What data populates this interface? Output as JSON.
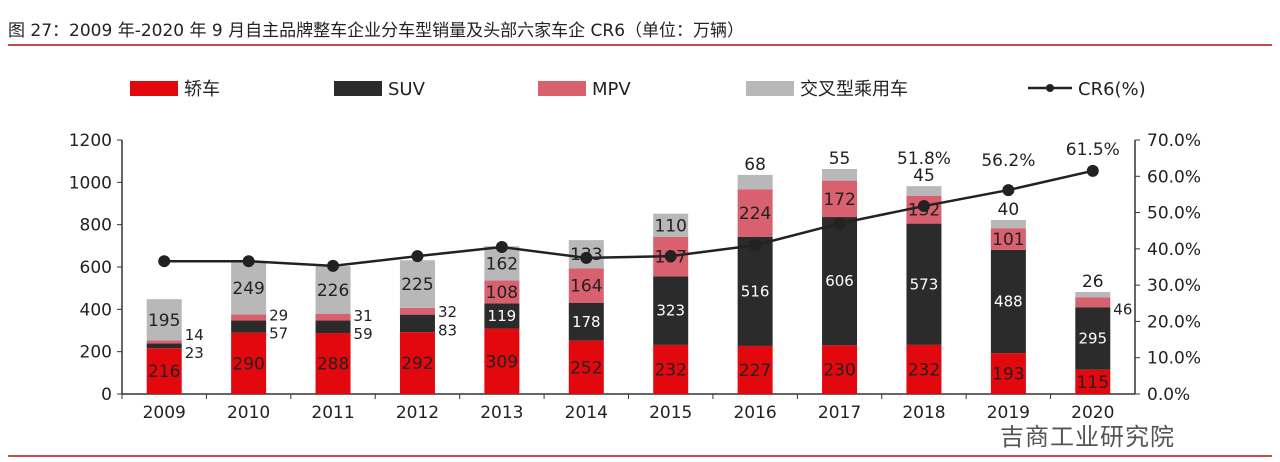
{
  "title": "图 27：2009 年-2020 年 9 月自主品牌整车企业分车型销量及头部六家车企 CR6（单位：万辆）",
  "watermark": "吉商工业研究院",
  "chart_data": {
    "type": "bar",
    "stacked": true,
    "categories": [
      "2009",
      "2010",
      "2011",
      "2012",
      "2013",
      "2014",
      "2015",
      "2016",
      "2017",
      "2018",
      "2019",
      "2020"
    ],
    "series": [
      {
        "name": "轿车",
        "color": "#e3080e",
        "values": [
          216,
          290,
          288,
          292,
          309,
          252,
          232,
          227,
          230,
          232,
          193,
          115
        ]
      },
      {
        "name": "SUV",
        "color": "#2b2b2b",
        "values": [
          23,
          57,
          59,
          83,
          119,
          178,
          323,
          516,
          606,
          573,
          488,
          295
        ]
      },
      {
        "name": "MPV",
        "color": "#d9606e",
        "values": [
          14,
          29,
          31,
          32,
          108,
          164,
          187,
          224,
          172,
          132,
          101,
          46
        ]
      },
      {
        "name": "交叉型乘用车",
        "color": "#b8b8b8",
        "values": [
          195,
          249,
          226,
          225,
          162,
          133,
          110,
          68,
          55,
          45,
          40,
          26
        ]
      }
    ],
    "line_series": {
      "name": "CR6(%)",
      "color": "#222222",
      "axis": "right",
      "values": [
        36.6,
        36.6,
        35.3,
        38.0,
        40.5,
        37.5,
        38.0,
        41.0,
        47.0,
        51.8,
        56.2,
        61.5
      ],
      "labels": {
        "2018": "51.8%",
        "2019": "56.2%",
        "2020": "61.5%"
      }
    },
    "ylim": [
      0,
      1200
    ],
    "yticks": [
      "0",
      "200",
      "400",
      "600",
      "800",
      "1000",
      "1200"
    ],
    "y2lim": [
      0,
      70
    ],
    "y2ticks": [
      "0.0%",
      "10.0%",
      "20.0%",
      "30.0%",
      "40.0%",
      "50.0%",
      "60.0%",
      "70.0%"
    ],
    "legend": "top",
    "grid": false
  }
}
